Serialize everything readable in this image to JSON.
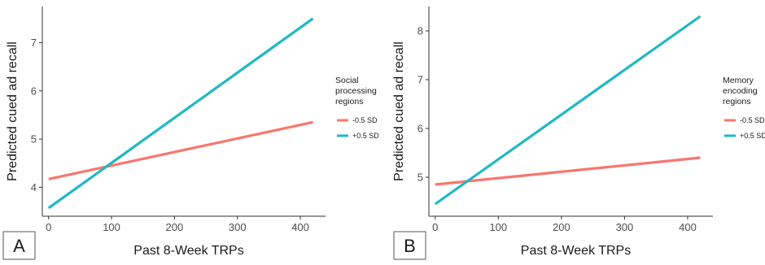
{
  "colors": {
    "low": "#F8766D",
    "high": "#1FB8C3",
    "axis": "#333333"
  },
  "chart_data": [
    {
      "type": "line",
      "panel_label": "A",
      "xlabel": "Past 8-Week TRPs",
      "ylabel": "Predicted cued ad recall",
      "xlim": [
        -10,
        440
      ],
      "ylim": [
        3.4,
        7.75
      ],
      "x_ticks": [
        0,
        100,
        200,
        300,
        400
      ],
      "y_ticks": [
        4,
        5,
        6,
        7
      ],
      "grid": false,
      "legend_title": [
        "Social",
        "processing",
        "regions"
      ],
      "series": [
        {
          "name": "-0.5 SD",
          "color": "#F8766D",
          "x": [
            0,
            420
          ],
          "y": [
            4.17,
            5.35
          ]
        },
        {
          "name": "+0.5 SD",
          "color": "#1FB8C3",
          "x": [
            0,
            420
          ],
          "y": [
            3.57,
            7.5
          ]
        }
      ]
    },
    {
      "type": "line",
      "panel_label": "B",
      "xlabel": "Past 8-Week TRPs",
      "ylabel": "Predicted cued ad recall",
      "xlim": [
        -10,
        440
      ],
      "ylim": [
        4.2,
        8.5
      ],
      "x_ticks": [
        0,
        100,
        200,
        300,
        400
      ],
      "y_ticks": [
        5,
        6,
        7,
        8
      ],
      "grid": false,
      "legend_title": [
        "Memory",
        "encoding",
        "regions"
      ],
      "series": [
        {
          "name": "-0.5 SD",
          "color": "#F8766D",
          "x": [
            0,
            420
          ],
          "y": [
            4.85,
            5.4
          ]
        },
        {
          "name": "+0.5 SD",
          "color": "#1FB8C3",
          "x": [
            0,
            420
          ],
          "y": [
            4.45,
            8.3
          ]
        }
      ]
    }
  ]
}
